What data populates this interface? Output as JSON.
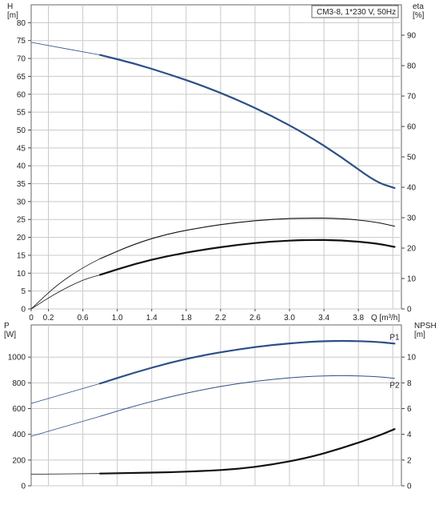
{
  "chart_data": [
    {
      "panel": "top",
      "type": "line",
      "title": "CM3-8, 1*230 V, 50Hz",
      "xlabel": "Q [m³/h]",
      "ylabel": "H\n[m]",
      "y2label": "eta\n[%]",
      "xlim": [
        0,
        4.3
      ],
      "ylim": [
        0,
        85
      ],
      "y2lim": [
        0,
        100
      ],
      "x_ticks": [
        "0",
        "0.2",
        "0.6",
        "1.0",
        "1.4",
        "1.8",
        "2.2",
        "2.6",
        "3.0",
        "3.4",
        "3.8"
      ],
      "y_ticks": [
        "0",
        "5",
        "10",
        "15",
        "20",
        "25",
        "30",
        "35",
        "40",
        "45",
        "50",
        "55",
        "60",
        "65",
        "70",
        "75",
        "80"
      ],
      "y2_ticks": [
        "0",
        "10",
        "20",
        "30",
        "40",
        "50",
        "60",
        "70",
        "80",
        "90"
      ],
      "grid": true,
      "series": [
        {
          "axis": "left",
          "color": "#2c4f86",
          "width": 2.2,
          "thin_until": 0.8,
          "x": [
            0,
            0.8,
            1.2,
            1.6,
            2.0,
            2.4,
            2.8,
            3.2,
            3.6,
            4.0,
            4.22
          ],
          "y": [
            74.5,
            71.0,
            68.6,
            65.6,
            62.3,
            58.4,
            53.9,
            48.7,
            42.5,
            35.5,
            33.8
          ]
        },
        {
          "axis": "right",
          "color": "#111111",
          "width": 1.1,
          "thin_until": 0.8,
          "x": [
            0,
            0.3,
            0.6,
            0.8,
            1.2,
            1.6,
            2.0,
            2.4,
            2.8,
            3.2,
            3.6,
            4.0,
            4.22
          ],
          "y": [
            0,
            8.0,
            13.6,
            16.5,
            21.4,
            24.8,
            26.9,
            28.5,
            29.5,
            29.9,
            29.8,
            28.6,
            27.2
          ]
        },
        {
          "axis": "right",
          "color": "#111111",
          "width": 2.2,
          "thin_until": 0.8,
          "x": [
            0,
            0.3,
            0.6,
            0.8,
            1.2,
            1.6,
            2.0,
            2.4,
            2.8,
            3.2,
            3.6,
            4.0,
            4.22
          ],
          "y": [
            0,
            5.4,
            9.6,
            11.2,
            14.8,
            17.5,
            19.5,
            21.1,
            22.2,
            22.7,
            22.6,
            21.6,
            20.4
          ]
        }
      ]
    },
    {
      "panel": "bottom",
      "type": "line",
      "ylabel": "P\n[W]",
      "y2label": "NPSH\n[m]",
      "xlim": [
        0,
        4.3
      ],
      "ylim": [
        0,
        1250
      ],
      "y2lim": [
        0,
        12.5
      ],
      "y_ticks": [
        "0",
        "200",
        "400",
        "600",
        "800",
        "1000"
      ],
      "y2_ticks": [
        "0",
        "2",
        "4",
        "6",
        "8",
        "10"
      ],
      "grid": true,
      "series": [
        {
          "name": "P1",
          "axis": "left",
          "color": "#2c4f86",
          "width": 2.2,
          "thin_until": 0.8,
          "x": [
            0,
            0.8,
            1.2,
            1.6,
            2.0,
            2.4,
            2.8,
            3.2,
            3.6,
            4.0,
            4.22
          ],
          "y": [
            640,
            795,
            880,
            955,
            1015,
            1060,
            1095,
            1118,
            1128,
            1120,
            1105
          ]
        },
        {
          "name": "P2",
          "axis": "left",
          "color": "#2c4f86",
          "width": 1.0,
          "thin_until": 0.8,
          "x": [
            0,
            0.8,
            1.2,
            1.6,
            2.0,
            2.4,
            2.8,
            3.2,
            3.6,
            4.0,
            4.22
          ],
          "y": [
            385,
            540,
            620,
            690,
            748,
            795,
            828,
            850,
            858,
            850,
            835
          ]
        },
        {
          "axis": "right",
          "color": "#111111",
          "width": 2.2,
          "thin_until": 0.8,
          "x": [
            0,
            0.8,
            1.2,
            1.6,
            2.0,
            2.4,
            2.8,
            3.2,
            3.6,
            4.0,
            4.22
          ],
          "y": [
            0.9,
            0.95,
            1.0,
            1.05,
            1.15,
            1.3,
            1.65,
            2.15,
            2.9,
            3.8,
            4.4
          ]
        }
      ]
    }
  ]
}
